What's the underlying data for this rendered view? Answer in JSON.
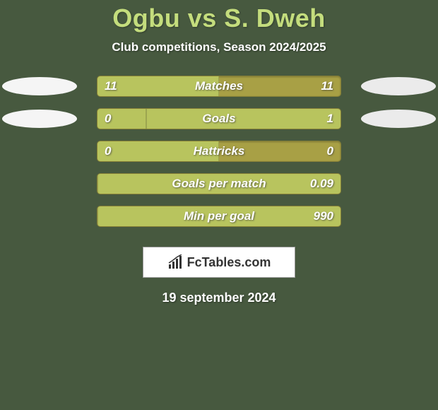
{
  "title": "Ogbu vs S. Dweh",
  "subtitle": "Club competitions, Season 2024/2025",
  "date_text": "19 september 2024",
  "logo_text": "FcTables.com",
  "colors": {
    "background": "#47593f",
    "title": "#c4dd7d",
    "bar_track": "#a8a045",
    "bar_fill": "#b8c45e",
    "ellipse_left": "#f5f5f5",
    "ellipse_right": "#ebebeb",
    "logo_bg": "#ffffff",
    "logo_text": "#333333"
  },
  "stats": [
    {
      "label": "Matches",
      "left_value": "11",
      "right_value": "11",
      "left_pct": 50,
      "right_pct": 50,
      "show_left_ellipse": true,
      "show_right_ellipse": true
    },
    {
      "label": "Goals",
      "left_value": "0",
      "right_value": "1",
      "left_pct": 20,
      "right_pct": 80,
      "show_left_ellipse": true,
      "show_right_ellipse": true
    },
    {
      "label": "Hattricks",
      "left_value": "0",
      "right_value": "0",
      "left_pct": 50,
      "right_pct": 0,
      "show_left_ellipse": false,
      "show_right_ellipse": false
    },
    {
      "label": "Goals per match",
      "left_value": "",
      "right_value": "0.09",
      "left_pct": 0,
      "right_pct": 100,
      "show_left_ellipse": false,
      "show_right_ellipse": false
    },
    {
      "label": "Min per goal",
      "left_value": "",
      "right_value": "990",
      "left_pct": 0,
      "right_pct": 100,
      "show_left_ellipse": false,
      "show_right_ellipse": false
    }
  ]
}
